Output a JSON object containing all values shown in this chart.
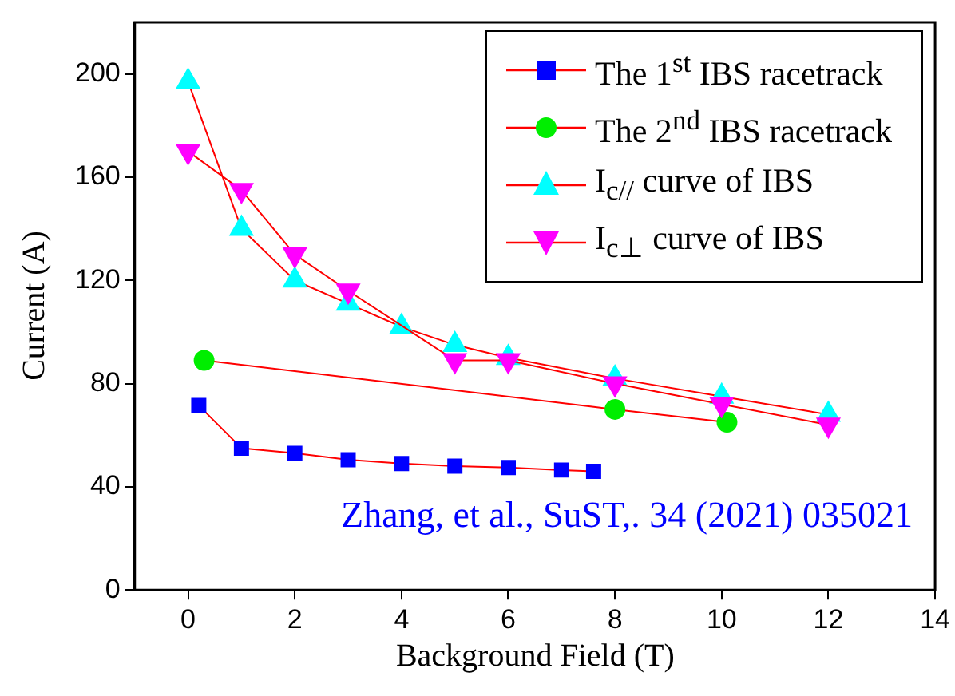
{
  "chart_data": {
    "type": "line",
    "xlabel": "Background Field (T)",
    "ylabel": "Current (A)",
    "xlim": [
      -1,
      14
    ],
    "xticks": [
      0,
      2,
      4,
      6,
      8,
      10,
      12,
      14
    ],
    "ylim": [
      0,
      220
    ],
    "yticks": [
      0,
      40,
      80,
      120,
      160,
      200
    ],
    "grid": false,
    "legend": "top right",
    "line_style": "solid",
    "series": [
      {
        "name": "The 1$^{st}$ IBS racetrack",
        "color": "#0000ff",
        "marker": "square",
        "x": [
          0.2,
          1,
          2,
          3,
          4,
          5,
          6,
          7,
          7.6
        ],
        "values": [
          71.5,
          55,
          53,
          50.5,
          49,
          48,
          47.5,
          46.5,
          46
        ]
      },
      {
        "name": "The 2$^{nd}$ IBS racetrack",
        "color": "#00ee00",
        "marker": "circle",
        "x": [
          0.3,
          8,
          10.1
        ],
        "values": [
          89,
          70,
          65
        ]
      },
      {
        "name": "I$_{c//}$ curve of IBS",
        "color": "#00ffff",
        "marker": "triangle",
        "x": [
          0,
          1,
          2,
          3,
          4,
          5,
          6,
          8,
          10,
          12
        ],
        "values": [
          197,
          140,
          120,
          111,
          102,
          95,
          90,
          82,
          75,
          68
        ]
      },
      {
        "name": "I$_{c⊥}$ curve of IBS",
        "color": "#ff00ff",
        "marker": "triangle-down",
        "x": [
          0,
          1,
          2,
          3,
          5,
          6,
          8,
          10,
          12
        ],
        "values": [
          170,
          155,
          130,
          116,
          89,
          89,
          80,
          72,
          64
        ]
      }
    ],
    "annotations": [
      "Zhang, et al., SuST,. 34 (2021) 035021"
    ]
  }
}
